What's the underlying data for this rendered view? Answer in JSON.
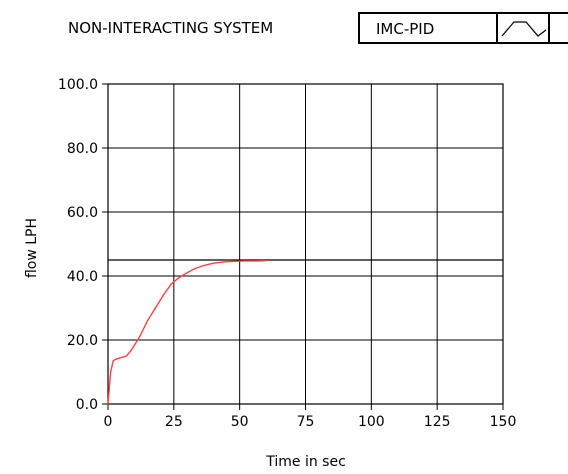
{
  "header": {
    "system_title": "NON-INTERACTING SYSTEM",
    "controller_label": "IMC-PID"
  },
  "icons": {
    "legend": "waveform-icon"
  },
  "colors": {
    "grid": "#000000",
    "series": "#ff4040",
    "setpoint": "#000000"
  },
  "chart_data": {
    "type": "line",
    "xlabel": "Time in sec",
    "ylabel": "flow LPH",
    "xlim": [
      0,
      150
    ],
    "ylim": [
      0,
      100
    ],
    "x_ticks": [
      "0",
      "25",
      "50",
      "75",
      "100",
      "125",
      "150"
    ],
    "y_ticks": [
      "0.0",
      "20.0",
      "40.0",
      "60.0",
      "80.0",
      "100.0"
    ],
    "grid": true,
    "reference_line": 45,
    "series": [
      {
        "x": [
          0,
          1,
          2,
          3,
          5,
          7,
          9,
          12,
          15,
          18,
          21,
          24,
          27,
          30,
          33,
          36,
          40,
          44,
          48,
          52,
          56,
          60
        ],
        "y": [
          0,
          10,
          13.5,
          14,
          14.5,
          15,
          17,
          21,
          26,
          30,
          34,
          37.5,
          39.5,
          41,
          42.3,
          43.2,
          44,
          44.4,
          44.6,
          44.7,
          44.7,
          44.8
        ]
      }
    ]
  }
}
